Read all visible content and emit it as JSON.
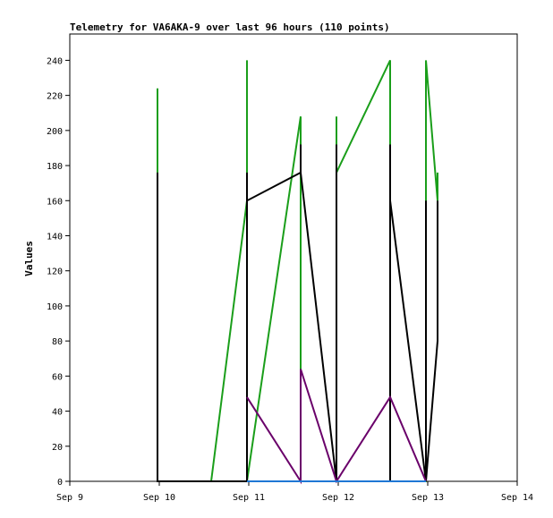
{
  "chart_data": {
    "type": "line",
    "title": "Telemetry for VA6AKA-9 over last 96 hours (110 points)",
    "xlabel": "",
    "ylabel": "Values",
    "x_tick_labels": [
      "Sep 9",
      "Sep 10",
      "Sep 11",
      "Sep 12",
      "Sep 13",
      "Sep 14"
    ],
    "y_ticks": [
      0,
      20,
      40,
      60,
      80,
      100,
      120,
      140,
      160,
      180,
      200,
      220,
      240
    ],
    "ylim": [
      0,
      255
    ],
    "xlim": [
      0,
      5
    ],
    "grid": false,
    "series": [
      {
        "color": "#1a9e1a",
        "x": [
          0.98,
          0.98,
          0.98,
          0.98,
          1.58,
          1.98,
          1.98,
          1.98,
          1.98,
          1.98,
          2.58,
          2.58,
          2.58,
          2.98,
          2.98,
          2.98,
          3.58,
          3.58,
          3.58,
          3.58,
          3.98,
          3.98,
          4.11,
          4.11
        ],
        "y": [
          176,
          224,
          208,
          0,
          0,
          160,
          240,
          176,
          224,
          0,
          208,
          96,
          0,
          0,
          208,
          176,
          240,
          192,
          240,
          0,
          0,
          240,
          160,
          176
        ]
      },
      {
        "color": "#000000",
        "x": [
          0.98,
          0.98,
          0.98,
          1.98,
          1.98,
          1.98,
          1.98,
          2.58,
          2.58,
          2.58,
          2.98,
          2.98,
          2.98,
          3.58,
          3.58,
          3.58,
          3.98,
          3.98,
          3.98,
          4.11,
          4.11
        ],
        "y": [
          0,
          176,
          0,
          0,
          176,
          0,
          160,
          176,
          192,
          176,
          0,
          192,
          0,
          0,
          192,
          160,
          0,
          160,
          0,
          80,
          160
        ]
      },
      {
        "color": "#6a006a",
        "x": [
          1.98,
          2.58,
          2.58,
          2.98,
          2.98,
          3.58,
          3.98
        ],
        "y": [
          48,
          0,
          64,
          0,
          0,
          48,
          0
        ]
      },
      {
        "color": "#1f77d4",
        "x": [
          1.98,
          3.98
        ],
        "y": [
          0,
          0
        ]
      }
    ]
  }
}
